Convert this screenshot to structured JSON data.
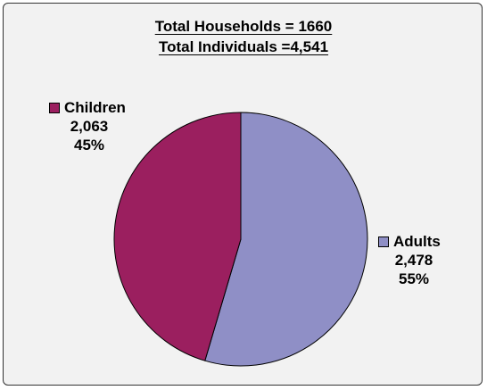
{
  "chart_data": {
    "type": "pie",
    "title": "Total Households = 1660",
    "subtitle": "Total Individuals =4,541",
    "slices": [
      {
        "name": "Adults",
        "value": 2478,
        "value_label": "2,478",
        "percent_label": "55%",
        "color": "#8f8fc6"
      },
      {
        "name": "Children",
        "value": 2063,
        "value_label": "2,063",
        "percent_label": "45%",
        "color": "#9b1f5f"
      }
    ],
    "start_angle_deg": 0,
    "direction": "clockwise",
    "legend": "inline-labels"
  }
}
